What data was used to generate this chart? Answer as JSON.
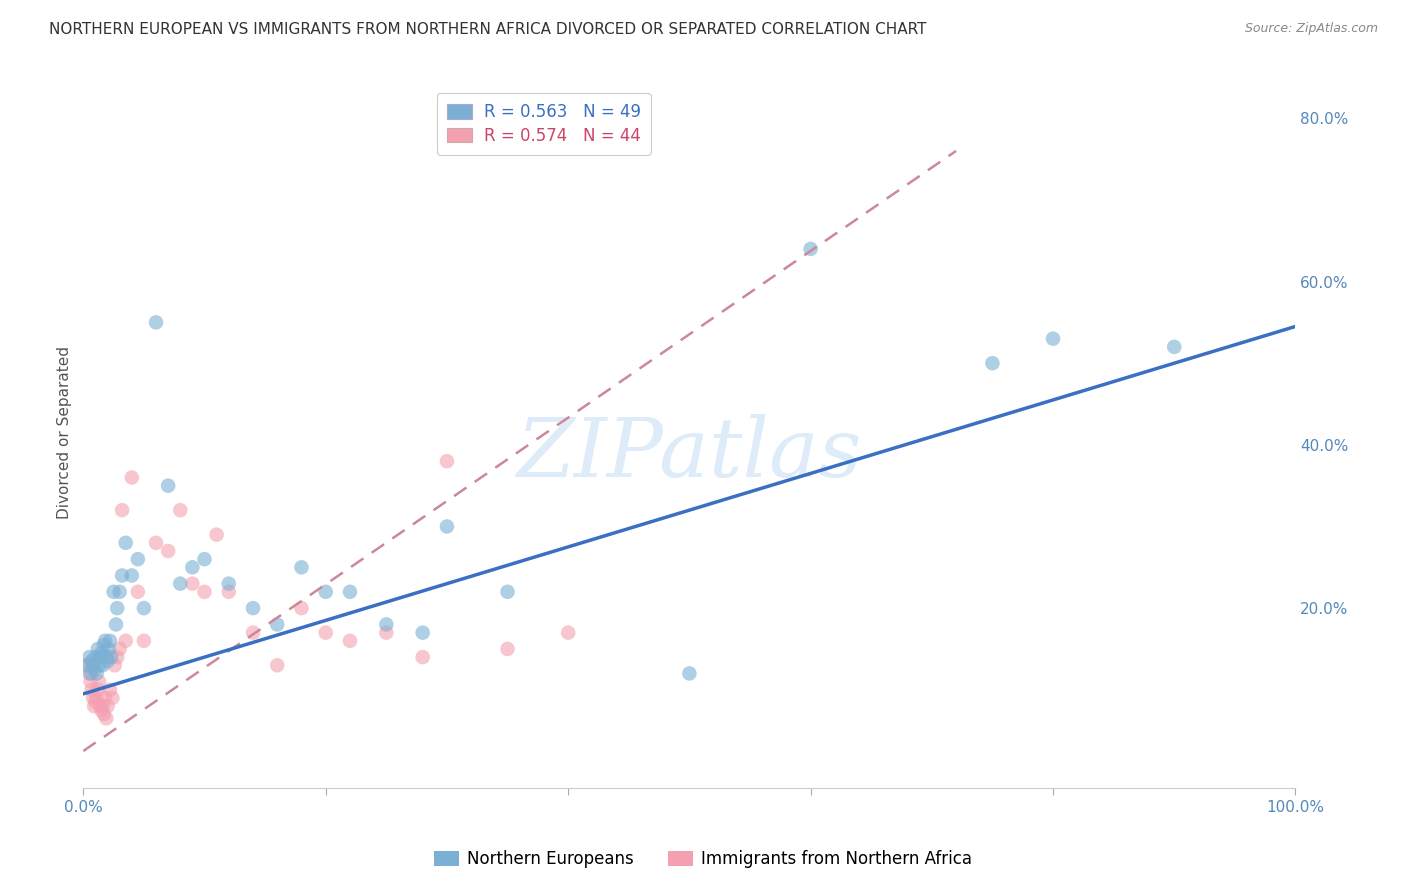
{
  "title": "NORTHERN EUROPEAN VS IMMIGRANTS FROM NORTHERN AFRICA DIVORCED OR SEPARATED CORRELATION CHART",
  "source": "Source: ZipAtlas.com",
  "ylabel": "Divorced or Separated",
  "watermark": "ZIPatlas",
  "xlim": [
    0.0,
    1.0
  ],
  "ylim": [
    -0.02,
    0.85
  ],
  "xticks": [
    0.0,
    0.2,
    0.4,
    0.6,
    0.8,
    1.0
  ],
  "yticks": [
    0.2,
    0.4,
    0.6,
    0.8
  ],
  "xtick_labels": [
    "0.0%",
    "",
    "",
    "",
    "",
    "100.0%"
  ],
  "ytick_labels": [
    "20.0%",
    "40.0%",
    "60.0%",
    "80.0%"
  ],
  "blue_R": 0.563,
  "blue_N": 49,
  "pink_R": 0.574,
  "pink_N": 44,
  "legend_label_blue": "Northern Europeans",
  "legend_label_pink": "Immigrants from Northern Africa",
  "blue_color": "#7BAFD4",
  "pink_color": "#F4A0B0",
  "trendline_blue_color": "#3A6FC4",
  "trendline_pink_dash_color": "#CC8899",
  "axis_color": "#5588BB",
  "grid_color": "#DDDDDD",
  "blue_scatter_x": [
    0.003,
    0.005,
    0.006,
    0.007,
    0.008,
    0.009,
    0.01,
    0.011,
    0.012,
    0.013,
    0.014,
    0.015,
    0.016,
    0.017,
    0.018,
    0.019,
    0.02,
    0.021,
    0.022,
    0.023,
    0.025,
    0.027,
    0.028,
    0.03,
    0.032,
    0.035,
    0.04,
    0.045,
    0.05,
    0.06,
    0.07,
    0.08,
    0.09,
    0.1,
    0.12,
    0.14,
    0.16,
    0.18,
    0.2,
    0.22,
    0.25,
    0.28,
    0.3,
    0.35,
    0.5,
    0.6,
    0.75,
    0.8,
    0.9
  ],
  "blue_scatter_y": [
    0.13,
    0.14,
    0.12,
    0.135,
    0.13,
    0.125,
    0.14,
    0.12,
    0.15,
    0.13,
    0.14,
    0.145,
    0.13,
    0.155,
    0.16,
    0.14,
    0.135,
    0.15,
    0.16,
    0.14,
    0.22,
    0.18,
    0.2,
    0.22,
    0.24,
    0.28,
    0.24,
    0.26,
    0.2,
    0.55,
    0.35,
    0.23,
    0.25,
    0.26,
    0.23,
    0.2,
    0.18,
    0.25,
    0.22,
    0.22,
    0.18,
    0.17,
    0.3,
    0.22,
    0.12,
    0.64,
    0.5,
    0.53,
    0.52
  ],
  "pink_scatter_x": [
    0.003,
    0.005,
    0.006,
    0.007,
    0.008,
    0.009,
    0.01,
    0.011,
    0.012,
    0.013,
    0.014,
    0.015,
    0.016,
    0.017,
    0.018,
    0.019,
    0.02,
    0.022,
    0.024,
    0.026,
    0.028,
    0.03,
    0.032,
    0.035,
    0.04,
    0.045,
    0.05,
    0.06,
    0.07,
    0.08,
    0.09,
    0.1,
    0.11,
    0.12,
    0.14,
    0.16,
    0.18,
    0.2,
    0.22,
    0.25,
    0.28,
    0.3,
    0.35,
    0.4
  ],
  "pink_scatter_y": [
    0.13,
    0.12,
    0.11,
    0.1,
    0.09,
    0.08,
    0.085,
    0.09,
    0.1,
    0.11,
    0.08,
    0.075,
    0.08,
    0.07,
    0.09,
    0.065,
    0.08,
    0.1,
    0.09,
    0.13,
    0.14,
    0.15,
    0.32,
    0.16,
    0.36,
    0.22,
    0.16,
    0.28,
    0.27,
    0.32,
    0.23,
    0.22,
    0.29,
    0.22,
    0.17,
    0.13,
    0.2,
    0.17,
    0.16,
    0.17,
    0.14,
    0.38,
    0.15,
    0.17
  ],
  "blue_trend_x0": 0.0,
  "blue_trend_x1": 1.0,
  "blue_trend_y0": 0.095,
  "blue_trend_y1": 0.545,
  "pink_trend_x0": 0.0,
  "pink_trend_x1": 0.72,
  "pink_trend_y0": 0.025,
  "pink_trend_y1": 0.76,
  "title_fontsize": 11,
  "axis_label_fontsize": 11,
  "tick_fontsize": 11,
  "legend_fontsize": 12,
  "scatter_size": 110
}
